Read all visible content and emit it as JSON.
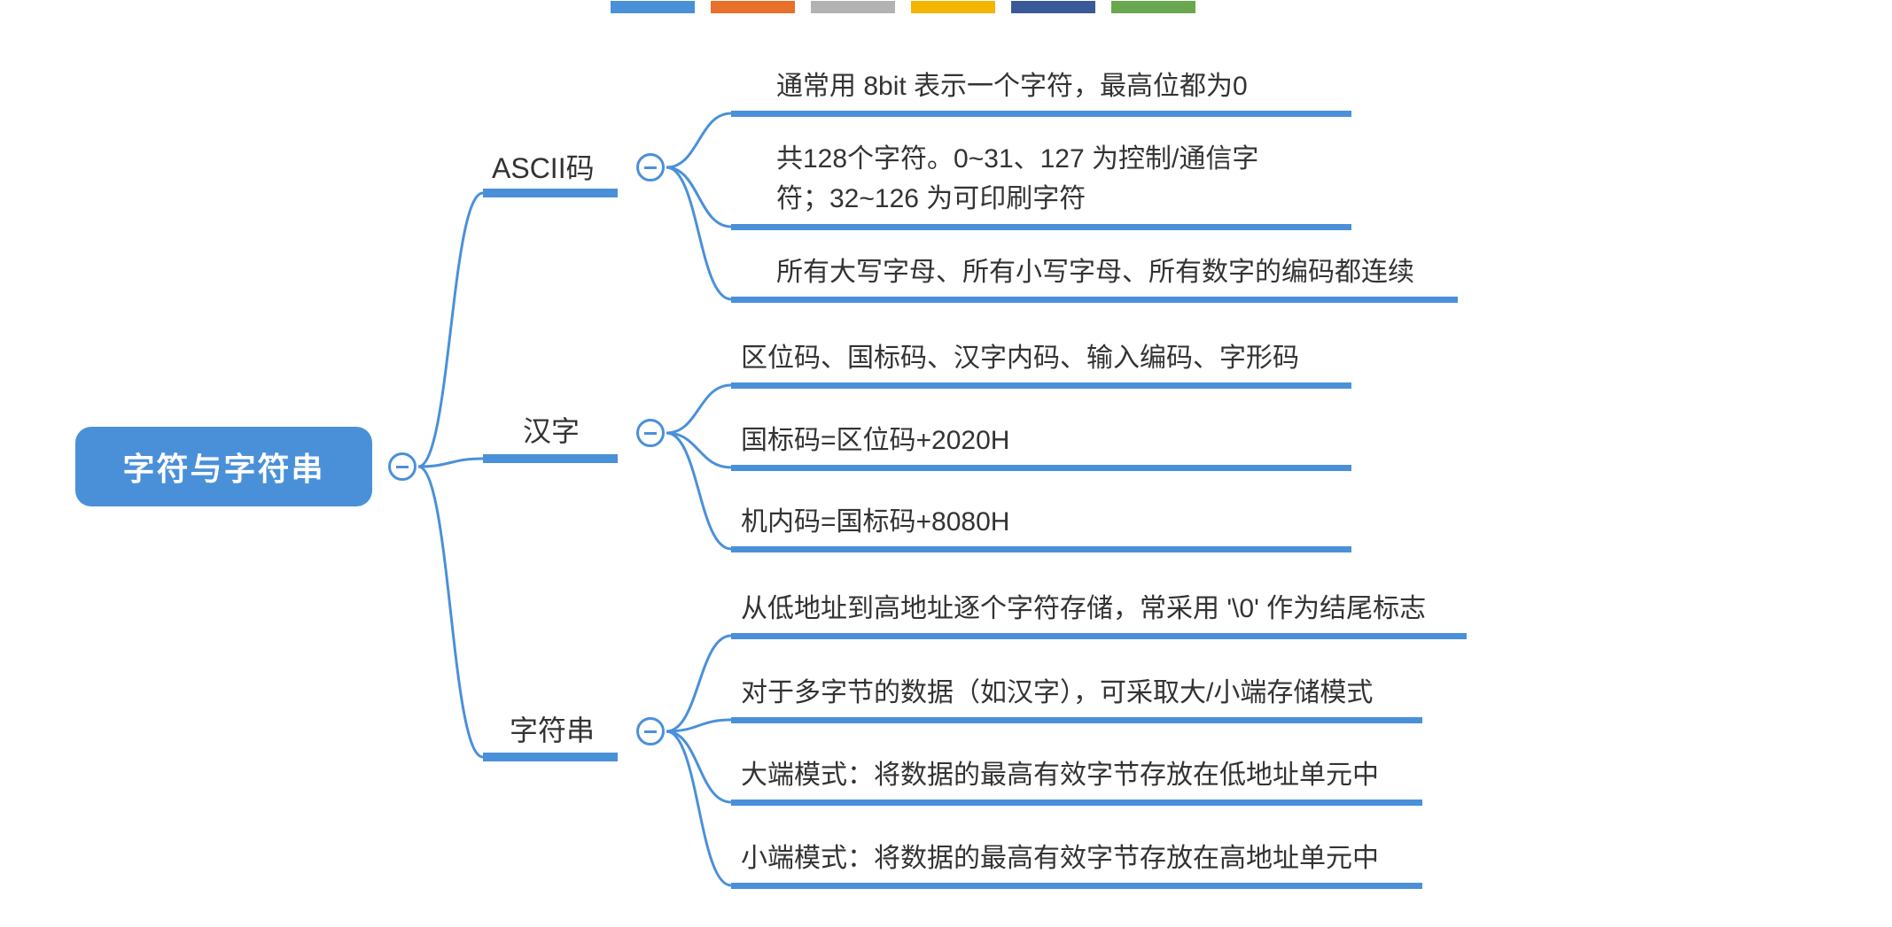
{
  "theme": {
    "primary": "#4a90d9",
    "root_bg": "#4a90d9",
    "root_text": "#ffffff",
    "text_color": "#333333",
    "underline_color": "#4a90d9",
    "toggle_border": "#4a90d9",
    "connector_stroke": "#4a90d9",
    "connector_width": 3,
    "underline_branch_height": 10,
    "underline_leaf_height": 7
  },
  "color_bar": [
    "#4a90d9",
    "#e8702a",
    "#b2b2b2",
    "#f5b400",
    "#3b5998",
    "#6aa84f"
  ],
  "root": {
    "label": "字符与字符串"
  },
  "branches": [
    {
      "id": "ascii",
      "label": "ASCII码",
      "leaves": [
        "通常用 8bit 表示一个字符，最高位都为0",
        "共128个字符。0~31、127 为控制/通信字符；32~126 为可印刷字符",
        "所有大写字母、所有小写字母、所有数字的编码都连续"
      ]
    },
    {
      "id": "hanzi",
      "label": "汉字",
      "leaves": [
        "区位码、国标码、汉字内码、输入编码、字形码",
        "国标码=区位码+2020H",
        "机内码=国标码+8080H"
      ]
    },
    {
      "id": "string",
      "label": "字符串",
      "leaves": [
        "从低地址到高地址逐个字符存储，常采用 '\\0' 作为结尾标志",
        "对于多字节的数据（如汉字），可采取大/小端存储模式",
        "大端模式：将数据的最高有效字节存放在低地址单元中",
        "小端模式：将数据的最高有效字节存放在高地址单元中"
      ]
    }
  ]
}
